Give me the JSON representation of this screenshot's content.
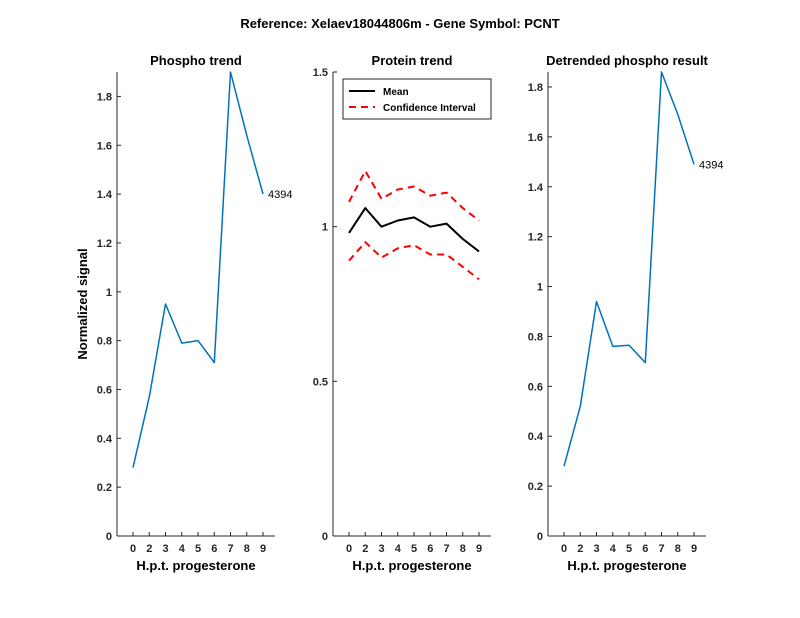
{
  "figure": {
    "suptitle": "Reference:  Xelaev18044806m - Gene Symbol:  PCNT"
  },
  "chart_data": [
    {
      "type": "line",
      "title": "Phospho trend",
      "xlabel": "H.p.t. progesterone",
      "ylabel": "Normalized signal",
      "categories": [
        "0",
        "2",
        "3",
        "4",
        "5",
        "6",
        "7",
        "8",
        "9"
      ],
      "ylim": [
        0,
        1.9
      ],
      "yticks": [
        "0",
        "0.2",
        "0.4",
        "0.6",
        "0.8",
        "1",
        "1.2",
        "1.4",
        "1.6",
        "1.8"
      ],
      "series": [
        {
          "values": [
            0.28,
            0.57,
            0.95,
            0.79,
            0.8,
            0.71,
            1.9,
            1.64,
            1.4
          ],
          "color": "#0072bd"
        }
      ],
      "annotation": "4394"
    },
    {
      "type": "line",
      "title": "Protein trend",
      "xlabel": "H.p.t. progesterone",
      "categories": [
        "0",
        "2",
        "3",
        "4",
        "5",
        "6",
        "7",
        "8",
        "9"
      ],
      "ylim": [
        0,
        1.5
      ],
      "yticks": [
        "0",
        "0.5",
        "1",
        "1.5"
      ],
      "legend": "top-left",
      "series": [
        {
          "name": "Mean",
          "values": [
            0.98,
            1.06,
            1.0,
            1.02,
            1.03,
            1.0,
            1.01,
            0.96,
            0.92
          ],
          "color": "#000000",
          "style": "solid"
        },
        {
          "name": "Confidence Interval",
          "values": [
            1.08,
            1.18,
            1.09,
            1.12,
            1.13,
            1.1,
            1.11,
            1.06,
            1.02
          ],
          "color": "#ff0000",
          "style": "dashed"
        },
        {
          "values": [
            0.89,
            0.95,
            0.9,
            0.93,
            0.94,
            0.91,
            0.91,
            0.87,
            0.83
          ],
          "color": "#ff0000",
          "style": "dashed"
        }
      ]
    },
    {
      "type": "line",
      "title": "Detrended phospho result",
      "xlabel": "H.p.t. progesterone",
      "categories": [
        "0",
        "2",
        "3",
        "4",
        "5",
        "6",
        "7",
        "8",
        "9"
      ],
      "ylim": [
        0,
        1.86
      ],
      "yticks": [
        "0",
        "0.2",
        "0.4",
        "0.6",
        "0.8",
        "1",
        "1.2",
        "1.4",
        "1.6",
        "1.8"
      ],
      "series": [
        {
          "values": [
            0.28,
            0.52,
            0.94,
            0.76,
            0.765,
            0.695,
            1.86,
            1.69,
            1.49
          ],
          "color": "#0072bd"
        }
      ],
      "annotation": "4394"
    }
  ]
}
